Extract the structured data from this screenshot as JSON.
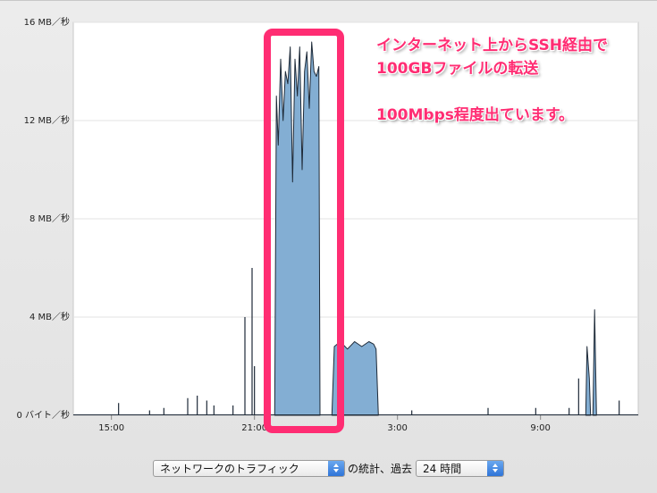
{
  "chart_data": {
    "type": "area",
    "y_tick_labels": [
      "0 バイト／秒",
      "4 MB／秒",
      "8 MB／秒",
      "12 MB／秒",
      "16 MB／秒"
    ],
    "y_ticks_mb_per_sec": [
      0,
      4,
      8,
      12,
      16
    ],
    "ylim": [
      0,
      16
    ],
    "x_tick_labels": [
      "15:00",
      "21:00",
      "3:00",
      "9:00"
    ],
    "x_ticks_hours": [
      15,
      21,
      27,
      33
    ],
    "xlim_hours": [
      13.4,
      37.1
    ],
    "grid": true,
    "spikes": [
      {
        "x": 15.3,
        "y": 0.5
      },
      {
        "x": 16.6,
        "y": 0.2
      },
      {
        "x": 17.2,
        "y": 0.3
      },
      {
        "x": 18.2,
        "y": 0.7
      },
      {
        "x": 18.6,
        "y": 0.8
      },
      {
        "x": 19.0,
        "y": 0.6
      },
      {
        "x": 19.3,
        "y": 0.4
      },
      {
        "x": 20.1,
        "y": 0.4
      },
      {
        "x": 20.6,
        "y": 4.0
      },
      {
        "x": 20.9,
        "y": 6.0
      },
      {
        "x": 21.0,
        "y": 2.0
      },
      {
        "x": 21.5,
        "y": 3.2
      },
      {
        "x": 27.6,
        "y": 0.2
      },
      {
        "x": 30.8,
        "y": 0.3
      },
      {
        "x": 32.8,
        "y": 0.3
      },
      {
        "x": 34.2,
        "y": 0.3
      },
      {
        "x": 34.6,
        "y": 1.5
      },
      {
        "x": 36.3,
        "y": 0.6
      }
    ],
    "series": [
      {
        "x": [
          21.85,
          21.92,
          22.0,
          22.1,
          22.2,
          22.3,
          22.4,
          22.5,
          22.6,
          22.7,
          22.8,
          22.9,
          23.0,
          23.1,
          23.2,
          23.3,
          23.4,
          23.5,
          23.6,
          23.7,
          23.75
        ],
        "y": [
          0,
          13.0,
          11.0,
          14.5,
          12.0,
          14.0,
          13.5,
          15.0,
          9.5,
          14.5,
          13.0,
          15.0,
          10.0,
          14.0,
          14.8,
          12.5,
          15.2,
          14.0,
          13.8,
          14.2,
          0
        ]
      },
      {
        "x": [
          24.25,
          24.35,
          24.6,
          24.9,
          25.2,
          25.5,
          25.8,
          26.0,
          26.1,
          26.2
        ],
        "y": [
          0,
          2.8,
          3.0,
          2.7,
          3.0,
          2.8,
          3.0,
          2.9,
          2.7,
          0
        ]
      },
      {
        "x": [
          34.9,
          34.95,
          35.05,
          35.1
        ],
        "y": [
          0,
          2.8,
          1.5,
          0
        ]
      },
      {
        "x": [
          35.2,
          35.27,
          35.35
        ],
        "y": [
          0,
          4.3,
          0
        ]
      }
    ]
  },
  "annotation": {
    "line1": "インターネット上からSSH経由で",
    "line2": "100GBファイルの転送",
    "line3": "100Mbps程度出ています。"
  },
  "controls": {
    "metric_value": "ネットワークのトラフィック",
    "label_middle": "の統計、過去",
    "period_value": "24 時間"
  },
  "colors": {
    "fill": "#83aed3",
    "line": "#1e2a38",
    "highlight": "#ff2d73"
  }
}
